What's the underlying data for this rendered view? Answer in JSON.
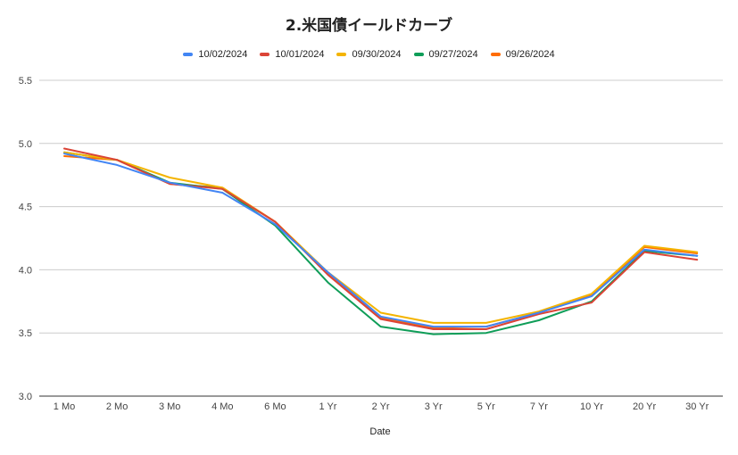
{
  "chart_data": {
    "type": "line",
    "title": "2.米国債イールドカーブ",
    "xlabel": "Date",
    "ylabel": "",
    "ylim": [
      3.0,
      5.5
    ],
    "yticks": [
      "3.0",
      "3.5",
      "4.0",
      "4.5",
      "5.0",
      "5.5"
    ],
    "grid": true,
    "legend_position": "top",
    "categories": [
      "1 Mo",
      "2 Mo",
      "3 Mo",
      "4 Mo",
      "6 Mo",
      "1 Yr",
      "2 Yr",
      "3 Yr",
      "5 Yr",
      "7 Yr",
      "10 Yr",
      "20 Yr",
      "30 Yr"
    ],
    "series": [
      {
        "name": "10/02/2024",
        "color": "#4285f4",
        "values": [
          4.92,
          4.83,
          4.69,
          4.61,
          4.36,
          3.98,
          3.63,
          3.55,
          3.55,
          3.66,
          3.79,
          4.16,
          4.11
        ]
      },
      {
        "name": "10/01/2024",
        "color": "#db4437",
        "values": [
          4.96,
          4.87,
          4.68,
          4.64,
          4.38,
          3.96,
          3.61,
          3.53,
          3.53,
          3.65,
          3.74,
          4.14,
          4.08
        ]
      },
      {
        "name": "09/30/2024",
        "color": "#f4b400",
        "values": [
          4.93,
          4.87,
          4.73,
          4.65,
          4.38,
          3.98,
          3.66,
          3.58,
          3.58,
          3.67,
          3.81,
          4.19,
          4.14
        ]
      },
      {
        "name": "09/27/2024",
        "color": "#0f9d58",
        "values": [
          4.93,
          4.87,
          4.69,
          4.64,
          4.35,
          3.9,
          3.55,
          3.49,
          3.5,
          3.6,
          3.75,
          4.15,
          4.11
        ]
      },
      {
        "name": "09/26/2024",
        "color": "#ff6d01",
        "values": [
          4.9,
          4.87,
          4.68,
          4.65,
          4.38,
          3.97,
          3.62,
          3.54,
          3.55,
          3.66,
          3.8,
          4.18,
          4.13
        ]
      }
    ]
  }
}
